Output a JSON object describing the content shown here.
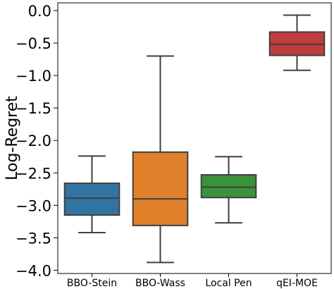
{
  "chart_data": {
    "type": "box",
    "title": "",
    "xlabel": "",
    "ylabel": "Log-Regret",
    "ylim": [
      -4.05,
      0.12
    ],
    "yticks": [
      0.0,
      -0.5,
      -1.0,
      -1.5,
      -2.0,
      -2.5,
      -3.0,
      -3.5,
      -4.0
    ],
    "ytick_labels": [
      "0.0",
      "−0.5",
      "−1.0",
      "−1.5",
      "−2.0",
      "−2.5",
      "−3.0",
      "−3.5",
      "−4.0"
    ],
    "categories": [
      "BBO-Stein",
      "BBO-Wass",
      "Local Pen",
      "qEI-MOE"
    ],
    "boxes": [
      {
        "category": "BBO-Stein",
        "whisker_low": -3.42,
        "q1": -3.15,
        "median": -2.89,
        "q3": -2.66,
        "whisker_high": -2.24,
        "color": "#3274a1"
      },
      {
        "category": "BBO-Wass",
        "whisker_low": -3.88,
        "q1": -3.31,
        "median": -2.9,
        "q3": -2.18,
        "whisker_high": -0.7,
        "color": "#e1812c"
      },
      {
        "category": "Local Pen",
        "whisker_low": -3.27,
        "q1": -2.88,
        "median": -2.72,
        "q3": -2.53,
        "whisker_high": -2.25,
        "color": "#3a923a"
      },
      {
        "category": "qEI-MOE",
        "whisker_low": -0.92,
        "q1": -0.69,
        "median": -0.52,
        "q3": -0.33,
        "whisker_high": -0.07,
        "color": "#c03d3e"
      }
    ],
    "grid": false,
    "legend": "none"
  }
}
